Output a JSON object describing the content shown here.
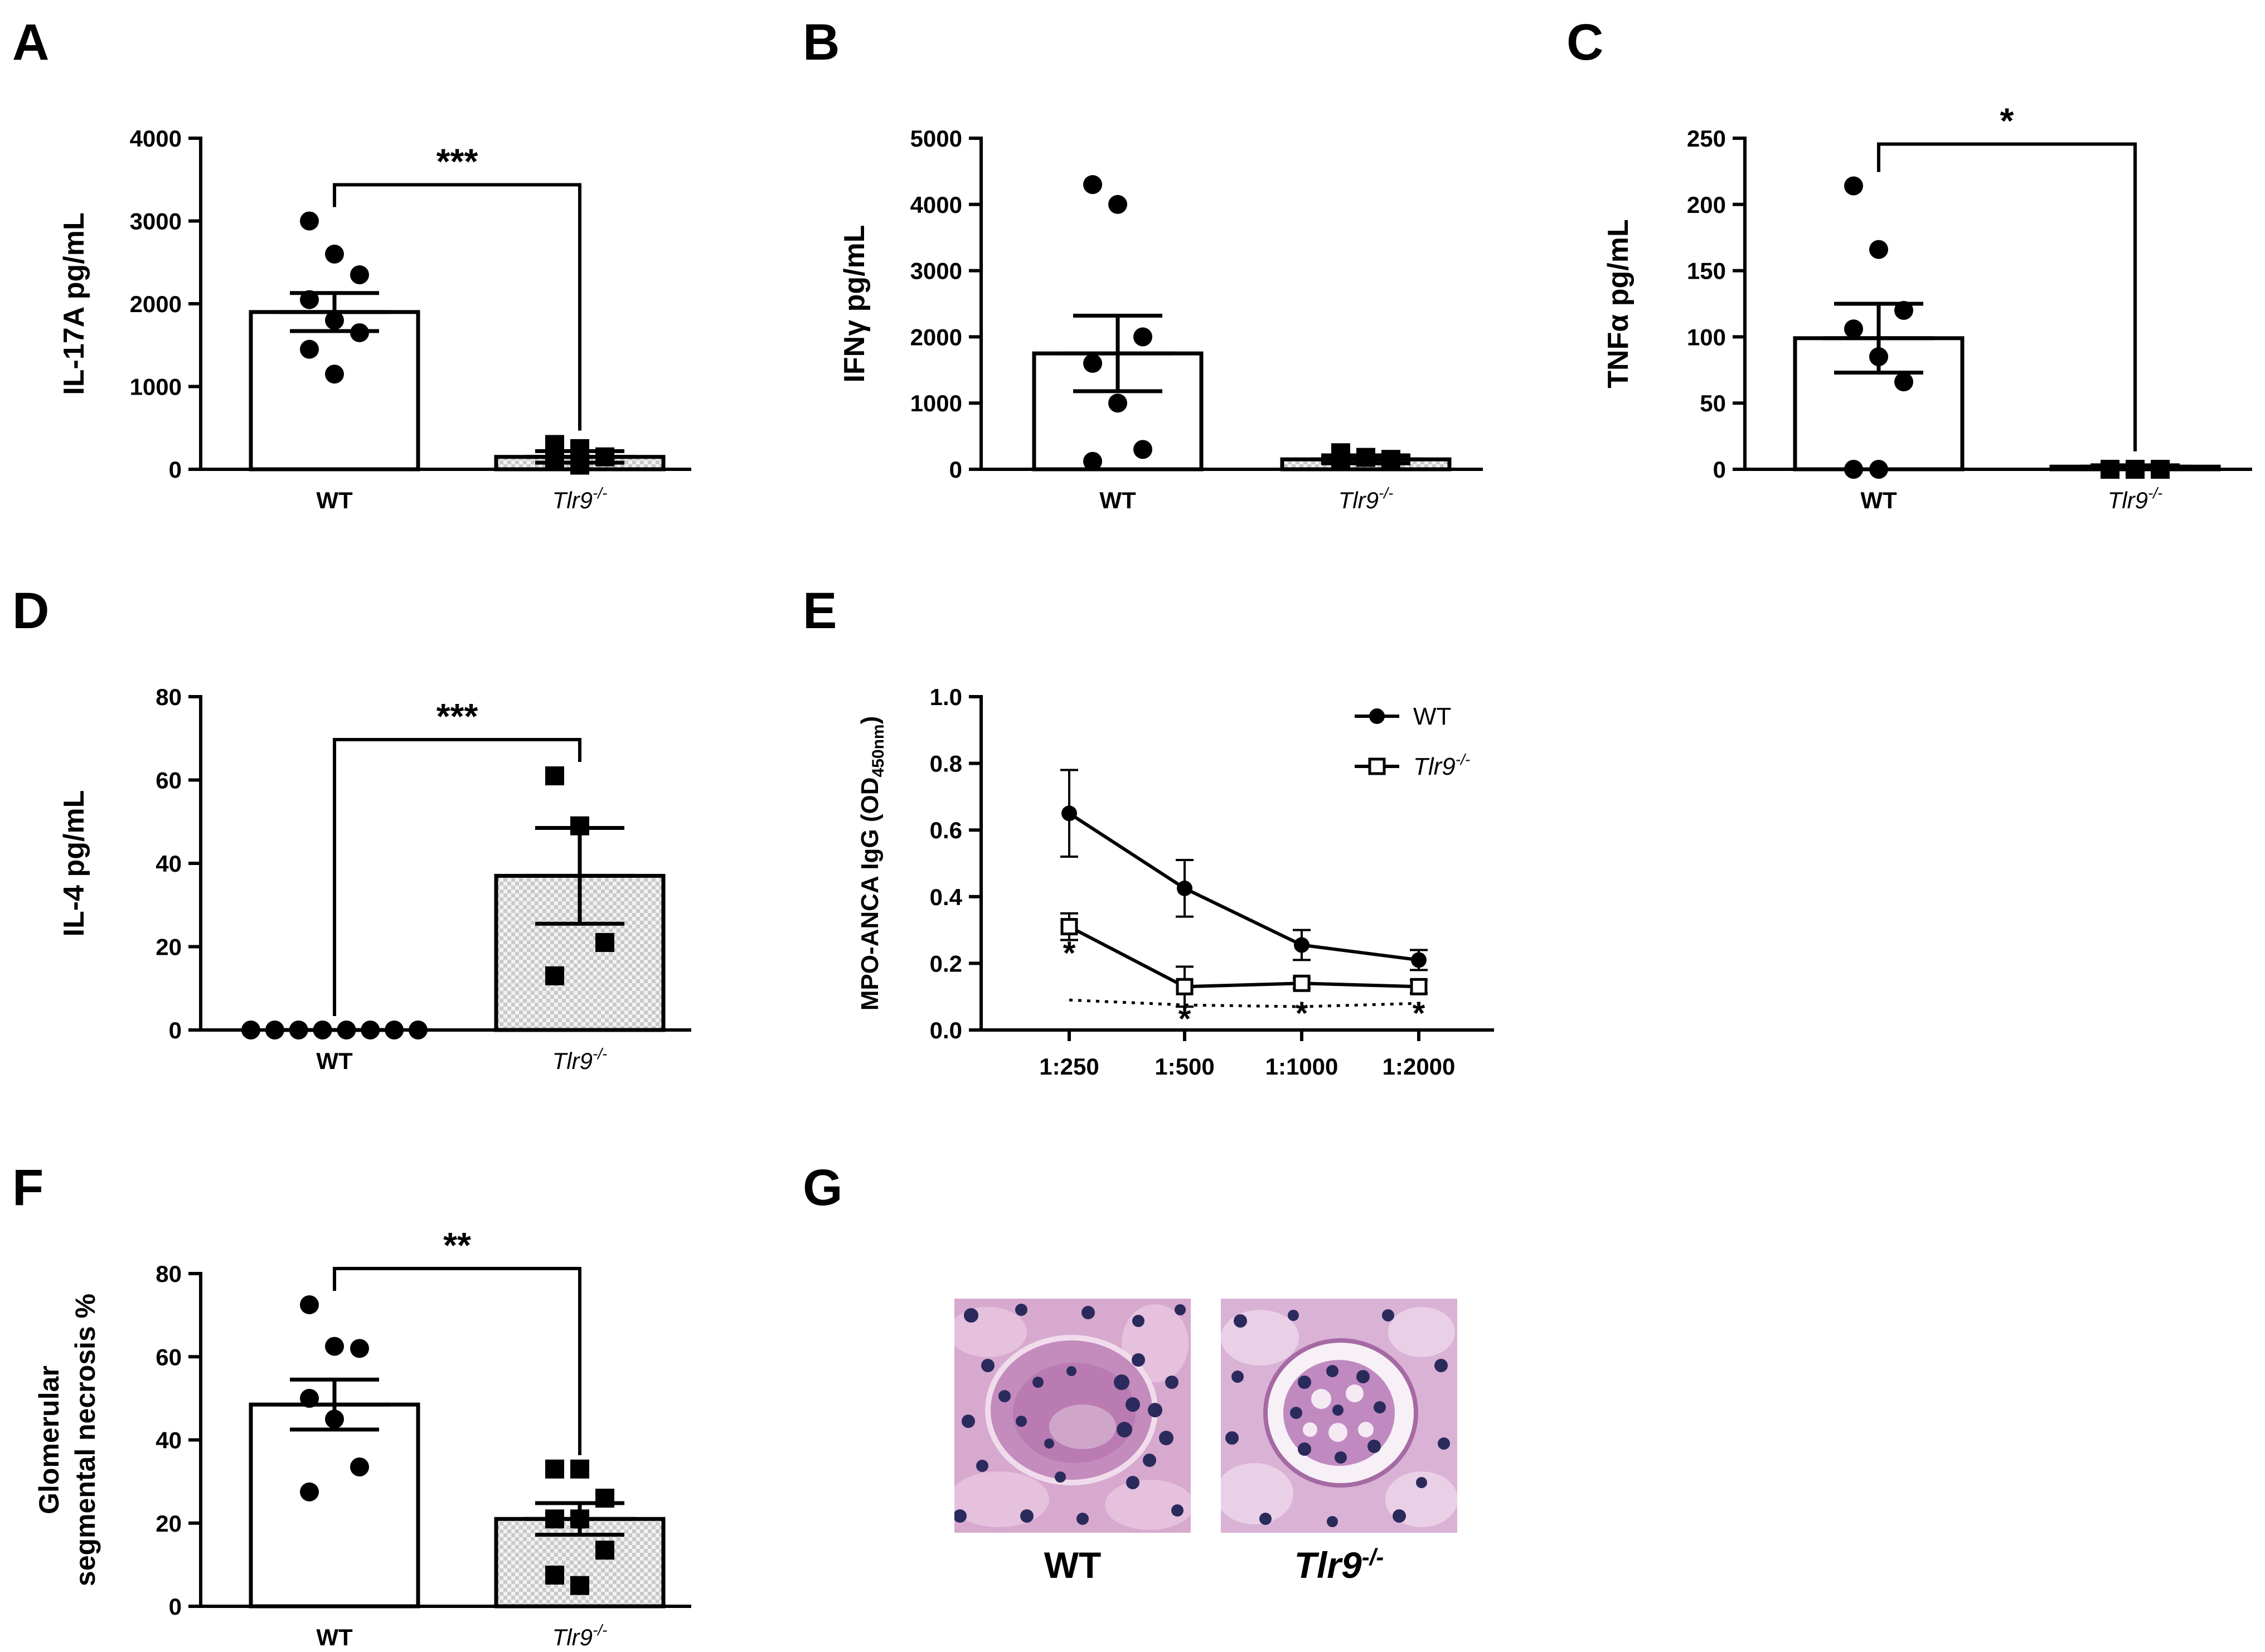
{
  "panels": {
    "A": "A",
    "B": "B",
    "C": "C",
    "D": "D",
    "E": "E",
    "F": "F",
    "G": "G"
  },
  "histology": {
    "wt_label": "WT",
    "ko_label": "Tlr9",
    "ko_sup": "-/-"
  },
  "colors": {
    "bar_fill": "#ffffff",
    "ko_fill": "#e6e6e6",
    "stroke": "#000000",
    "tissue_pink": "#c78fbf",
    "nucleus": "#2b2a5c"
  },
  "chart_data": [
    {
      "id": "A",
      "type": "bar",
      "ylabel": "IL-17A pg/mL",
      "ylim": [
        0,
        4000
      ],
      "yticks": [
        0,
        1000,
        2000,
        3000,
        4000
      ],
      "categories": [
        "WT",
        "Tlr9"
      ],
      "cat_sup": [
        "",
        "-/-"
      ],
      "means": [
        1900,
        150
      ],
      "sem": [
        230,
        70
      ],
      "points": [
        [
          3000,
          2600,
          2350,
          2050,
          1800,
          1650,
          1450,
          1150
        ],
        [
          300,
          250,
          150,
          100,
          50
        ]
      ],
      "markers": [
        "circle",
        "square"
      ],
      "significance": "***"
    },
    {
      "id": "B",
      "type": "bar",
      "ylabel": "IFNγ pg/mL",
      "ylim": [
        0,
        5000
      ],
      "yticks": [
        0,
        1000,
        2000,
        3000,
        4000,
        5000
      ],
      "categories": [
        "WT",
        "Tlr9"
      ],
      "cat_sup": [
        "",
        "-/-"
      ],
      "means": [
        1750,
        150
      ],
      "sem": [
        570,
        60
      ],
      "points": [
        [
          4300,
          4000,
          2000,
          1600,
          1000,
          300,
          120
        ],
        [
          250,
          180,
          150,
          120
        ]
      ],
      "markers": [
        "circle",
        "square"
      ],
      "significance": ""
    },
    {
      "id": "C",
      "type": "bar",
      "ylabel": "TNFα pg/mL",
      "ylim": [
        0,
        250
      ],
      "yticks": [
        0,
        50,
        100,
        150,
        200,
        250
      ],
      "categories": [
        "WT",
        "Tlr9"
      ],
      "cat_sup": [
        "",
        "-/-"
      ],
      "means": [
        99,
        2
      ],
      "sem": [
        26,
        1
      ],
      "points": [
        [
          214,
          166,
          120,
          106,
          85,
          66,
          0,
          0
        ],
        [
          0,
          0,
          0,
          0
        ]
      ],
      "markers": [
        "circle",
        "square"
      ],
      "significance": "*"
    },
    {
      "id": "D",
      "type": "bar",
      "ylabel": "IL-4 pg/mL",
      "ylim": [
        0,
        80
      ],
      "yticks": [
        0,
        20,
        40,
        60,
        80
      ],
      "categories": [
        "WT",
        "Tlr9"
      ],
      "cat_sup": [
        "",
        "-/-"
      ],
      "means": [
        0,
        37
      ],
      "sem": [
        0,
        11.5
      ],
      "points": [
        [
          0,
          0,
          0,
          0,
          0,
          0,
          0,
          0
        ],
        [
          61,
          49,
          21,
          13
        ]
      ],
      "markers": [
        "circle",
        "square"
      ],
      "significance": "***"
    },
    {
      "id": "E",
      "type": "line",
      "ylabel": "MPO-ANCA IgG (OD",
      "ylabel_sub": "450nm",
      "ylabel_end": ")",
      "ylim": [
        0,
        1.0
      ],
      "yticks": [
        0.0,
        0.2,
        0.4,
        0.6,
        0.8,
        1.0
      ],
      "yticklabels": [
        "0.0",
        "0.2",
        "0.4",
        "0.6",
        "0.8",
        "1.0"
      ],
      "categories": [
        "1:250",
        "1:500",
        "1:1000",
        "1:2000"
      ],
      "series": [
        {
          "name": "WT",
          "name_sup": "",
          "marker": "circle",
          "values": [
            0.65,
            0.425,
            0.255,
            0.21
          ],
          "err": [
            0.13,
            0.085,
            0.045,
            0.03
          ]
        },
        {
          "name": "Tlr9",
          "name_sup": "-/-",
          "marker": "square",
          "values": [
            0.31,
            0.13,
            0.14,
            0.13
          ],
          "err": [
            0.04,
            0.06,
            0.015,
            0.02
          ]
        }
      ],
      "baseline": [
        0.09,
        0.075,
        0.07,
        0.08
      ],
      "stars": [
        "*",
        "*",
        "*",
        "*"
      ]
    },
    {
      "id": "F",
      "type": "bar",
      "ylabel": "Glomerular",
      "ylabel2": "segmental necrosis %",
      "ylim": [
        0,
        80
      ],
      "yticks": [
        0,
        20,
        40,
        60,
        80
      ],
      "categories": [
        "WT",
        "Tlr9"
      ],
      "cat_sup": [
        "",
        "-/-"
      ],
      "means": [
        48.5,
        21
      ],
      "sem": [
        6,
        3.8
      ],
      "points": [
        [
          72.5,
          62.5,
          62,
          50,
          45,
          33.5,
          27.5
        ],
        [
          33,
          33,
          26,
          21,
          21,
          13.5,
          7.5,
          5
        ]
      ],
      "markers": [
        "circle",
        "square"
      ],
      "significance": "**"
    }
  ]
}
